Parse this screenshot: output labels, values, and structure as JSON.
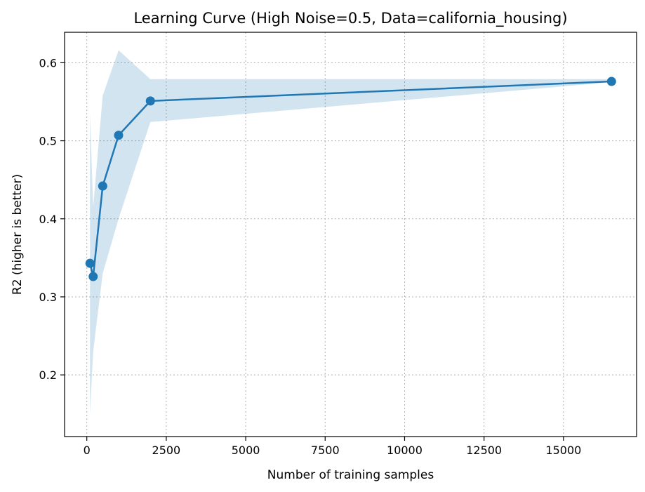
{
  "chart_data": {
    "type": "line",
    "title": "Learning Curve (High Noise=0.5, Data=california_housing)",
    "xlabel": "Number of training samples",
    "ylabel": "R2 (higher is better)",
    "xlim": [
      -700,
      17300
    ],
    "ylim": [
      0.121,
      0.639
    ],
    "xticks": [
      0,
      2500,
      5000,
      7500,
      10000,
      12500,
      15000
    ],
    "xtick_labels": [
      "0",
      "2500",
      "5000",
      "7500",
      "10000",
      "12500",
      "15000"
    ],
    "yticks": [
      0.2,
      0.3,
      0.4,
      0.5,
      0.6
    ],
    "ytick_labels": [
      "0.2",
      "0.3",
      "0.4",
      "0.5",
      "0.6"
    ],
    "grid": true,
    "series": [
      {
        "x": [
          100,
          200,
          500,
          1000,
          2000,
          16512
        ],
        "y": [
          0.343,
          0.326,
          0.442,
          0.507,
          0.551,
          0.576
        ],
        "lower": [
          0.15,
          0.23,
          0.33,
          0.4,
          0.524,
          0.575
        ],
        "upper": [
          0.535,
          0.415,
          0.558,
          0.616,
          0.579,
          0.579
        ],
        "color": "#1f77b4",
        "band_color": "#1f77b4",
        "marker": "circle"
      }
    ]
  }
}
